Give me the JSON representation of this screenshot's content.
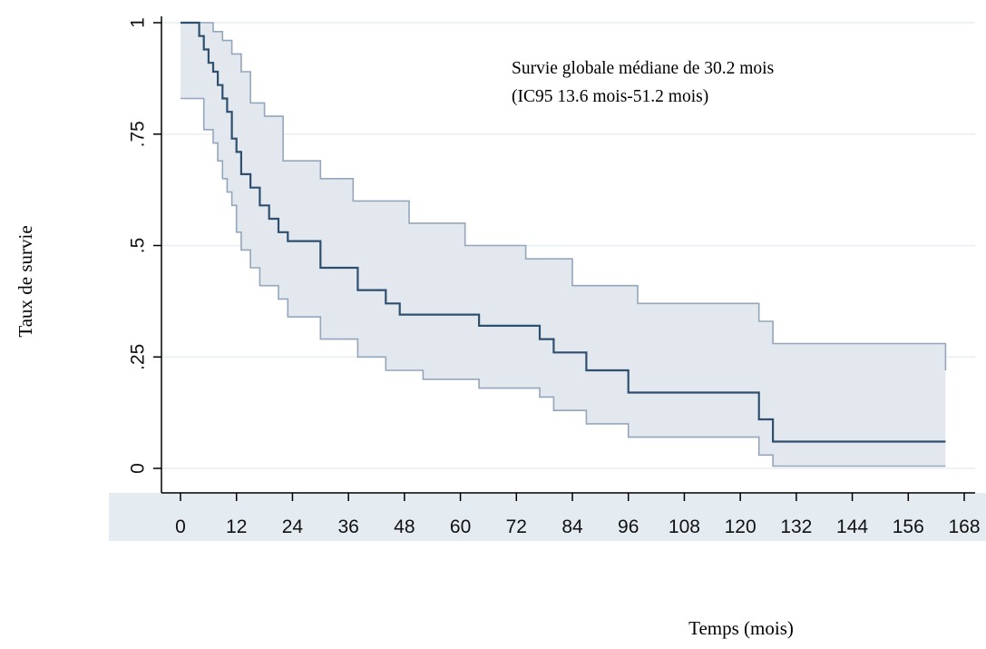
{
  "chart_data": {
    "type": "line",
    "title": "",
    "xlabel": "Temps (mois)",
    "ylabel": "Taux de survie",
    "xlim": [
      0,
      168
    ],
    "ylim": [
      0,
      1
    ],
    "x_ticks": [
      0,
      12,
      24,
      36,
      48,
      60,
      72,
      84,
      96,
      108,
      120,
      132,
      144,
      156,
      168
    ],
    "y_ticks": [
      0,
      0.25,
      0.5,
      0.75,
      1
    ],
    "y_tick_labels": [
      "0",
      ".25",
      ".5",
      ".75",
      "1"
    ],
    "grid": true,
    "annotation": [
      "Survie globale médiane de 30.2 mois",
      "(IC95 13.6 mois-51.2 mois)"
    ],
    "colors": {
      "survival_line": "#2f4f6f",
      "ci_fill": "#e3e8ef",
      "ci_line": "#93a6bb",
      "grid": "#e8eef4",
      "plot_bg": "#ffffff",
      "tick_band": "#e4ebf1"
    },
    "series": [
      {
        "role": "survival",
        "x": [
          0,
          3,
          4,
          5,
          6,
          7,
          8,
          9,
          10,
          11,
          12,
          13,
          15,
          17,
          19,
          21,
          23,
          30,
          38,
          44,
          47,
          64,
          77,
          80,
          87,
          96,
          124,
          127,
          164
        ],
        "y": [
          1.0,
          1.0,
          0.97,
          0.94,
          0.91,
          0.89,
          0.86,
          0.83,
          0.8,
          0.74,
          0.71,
          0.66,
          0.63,
          0.59,
          0.56,
          0.53,
          0.51,
          0.45,
          0.4,
          0.37,
          0.345,
          0.32,
          0.29,
          0.26,
          0.22,
          0.17,
          0.11,
          0.06,
          0.06
        ]
      },
      {
        "role": "ci_upper",
        "x": [
          0,
          5,
          7,
          9,
          11,
          13,
          15,
          18,
          22,
          30,
          37,
          49,
          61,
          74,
          84,
          98,
          124,
          127,
          164
        ],
        "y": [
          1.0,
          1.0,
          0.98,
          0.96,
          0.93,
          0.89,
          0.82,
          0.79,
          0.69,
          0.65,
          0.6,
          0.55,
          0.5,
          0.47,
          0.41,
          0.37,
          0.33,
          0.28,
          0.22
        ]
      },
      {
        "role": "ci_lower",
        "x": [
          0,
          3,
          5,
          7,
          8,
          9,
          10,
          11,
          12,
          13,
          15,
          17,
          21,
          23,
          30,
          38,
          44,
          52,
          64,
          77,
          80,
          87,
          96,
          124,
          127,
          164
        ],
        "y": [
          0.83,
          0.83,
          0.76,
          0.73,
          0.69,
          0.65,
          0.62,
          0.59,
          0.53,
          0.49,
          0.45,
          0.41,
          0.38,
          0.34,
          0.29,
          0.25,
          0.22,
          0.2,
          0.18,
          0.16,
          0.13,
          0.1,
          0.07,
          0.03,
          0.005,
          0.005
        ]
      }
    ]
  }
}
